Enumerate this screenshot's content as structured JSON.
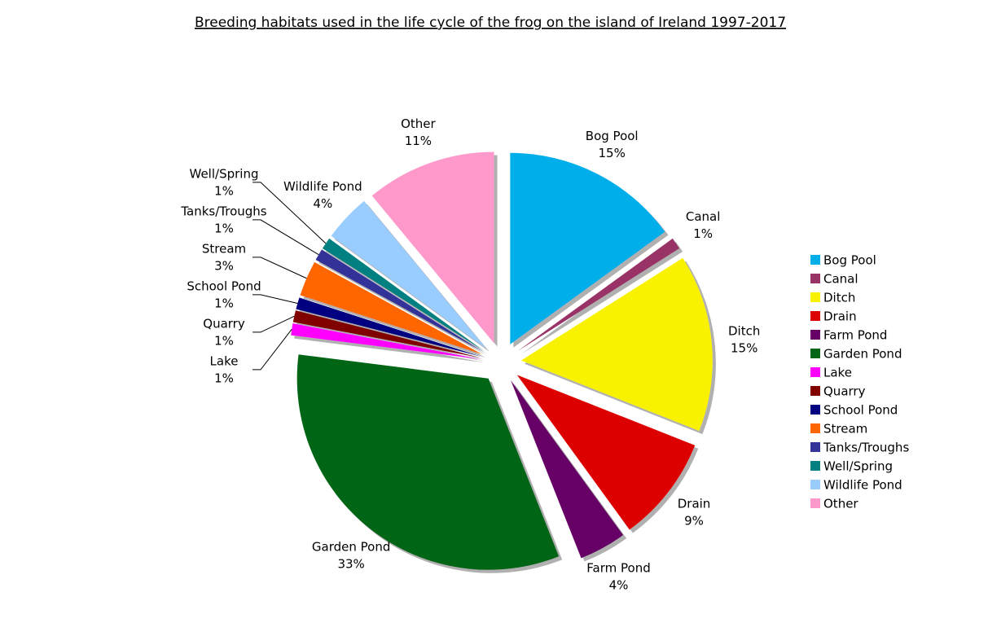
{
  "chart_data": {
    "type": "pie",
    "title": "Breeding habitats used in the life cycle of the frog on the island of Ireland 1997-2017",
    "categories": [
      "Bog Pool",
      "Canal",
      "Ditch",
      "Drain",
      "Farm Pond",
      "Garden Pond",
      "Lake",
      "Quarry",
      "School Pond",
      "Stream",
      "Tanks/Troughs",
      "Well/Spring",
      "Wildlife Pond",
      "Other"
    ],
    "values": [
      15,
      1,
      15,
      9,
      4,
      33,
      1,
      1,
      1,
      3,
      1,
      1,
      4,
      11
    ],
    "value_labels": [
      "15%",
      "1%",
      "15%",
      "9%",
      "4%",
      "33%",
      "1%",
      "1%",
      "1%",
      "3%",
      "1%",
      "1%",
      "4%",
      "11%"
    ],
    "colors": [
      "#00aeea",
      "#993366",
      "#f8f200",
      "#dd0000",
      "#660066",
      "#006615",
      "#ff00ff",
      "#800000",
      "#000080",
      "#ff6600",
      "#333399",
      "#008080",
      "#99ccff",
      "#ff99cc"
    ],
    "legend": "right"
  }
}
